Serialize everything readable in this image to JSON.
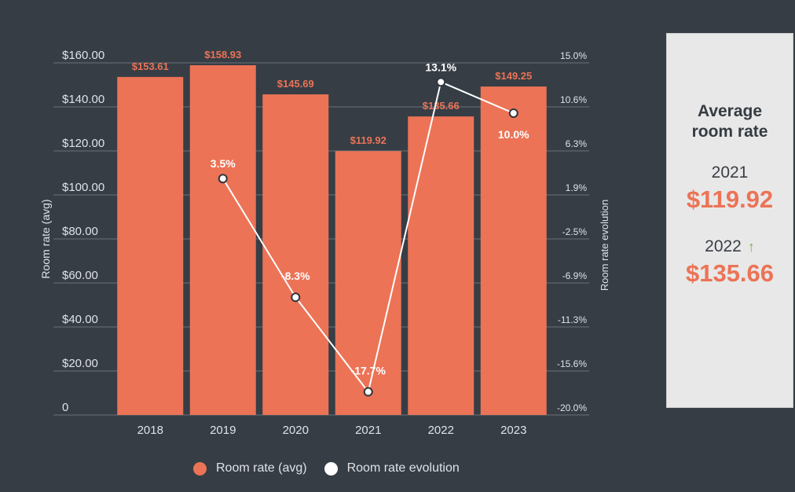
{
  "chart_data": {
    "type": "bar",
    "categories": [
      "2018",
      "2019",
      "2020",
      "2021",
      "2022",
      "2023"
    ],
    "ylabel": "Room rate (avg)",
    "y2label": "Room rate evolution",
    "ylim": [
      0,
      160
    ],
    "y2lim": [
      -20.0,
      15.0
    ],
    "y_ticks": [
      "0",
      "$20.00",
      "$40.00",
      "$60.00",
      "$80.00",
      "$100.00",
      "$120.00",
      "$140.00",
      "$160.00"
    ],
    "y2_ticks": [
      "-20.0%",
      "-15.6%",
      "-11.3%",
      "-6.9%",
      "-2.5%",
      "1.9%",
      "6.3%",
      "10.6%",
      "15.0%"
    ],
    "series": [
      {
        "name": "Room rate (avg)",
        "type": "bar",
        "axis": "left",
        "values": [
          153.61,
          158.93,
          145.69,
          119.92,
          135.66,
          149.25
        ],
        "labels": [
          "$153.61",
          "$158.93",
          "$145.69",
          "$119.92",
          "$135.66",
          "$149.25"
        ]
      },
      {
        "name": "Room rate evolution",
        "type": "line",
        "axis": "right",
        "values": [
          null,
          3.5,
          -8.3,
          -17.7,
          13.1,
          10.0
        ],
        "labels": [
          null,
          "3.5%",
          "-8.3%",
          "-17.7%",
          "13.1%",
          "10.0%"
        ]
      }
    ],
    "legend_position": "bottom",
    "grid": true
  },
  "colors": {
    "background": "#363d45",
    "bar": "#ec7356",
    "line": "#ffffff",
    "axis_text": "#dfe3e8",
    "gridline": "#6b7178",
    "card_bg": "#e8e8e8",
    "up_arrow": "#7cb342"
  },
  "legend": {
    "bar_label": "Room rate (avg)",
    "line_label": "Room rate evolution"
  },
  "side_card": {
    "title_line1": "Average",
    "title_line2": "room rate",
    "year1": "2021",
    "value1": "$119.92",
    "year2": "2022",
    "value2": "$135.66",
    "trend_icon": "arrow-up-icon"
  }
}
